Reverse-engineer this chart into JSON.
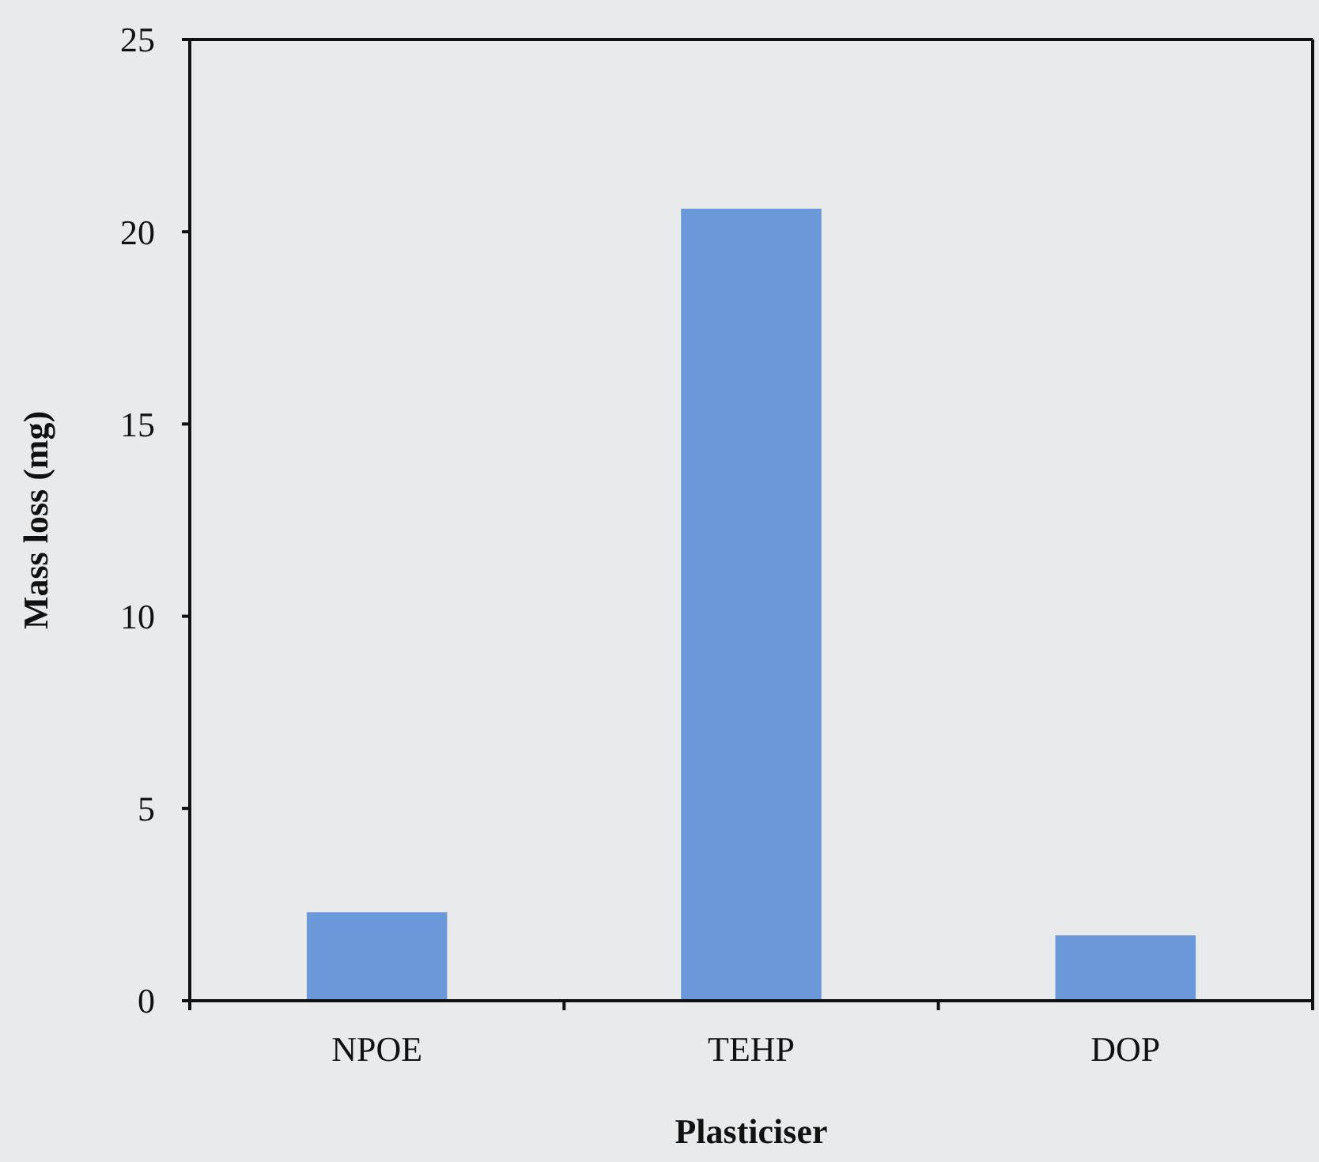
{
  "chart_data": {
    "type": "bar",
    "xlabel": "Plasticiser",
    "ylabel": "Mass loss (mg)",
    "categories": [
      "NPOE",
      "TEHP",
      "DOP"
    ],
    "values": [
      2.3,
      20.6,
      1.7
    ],
    "color": "#6a98d8",
    "ylim": [
      0,
      25
    ],
    "yticks": [
      0,
      5,
      10,
      15,
      20,
      25
    ],
    "grid": false
  }
}
